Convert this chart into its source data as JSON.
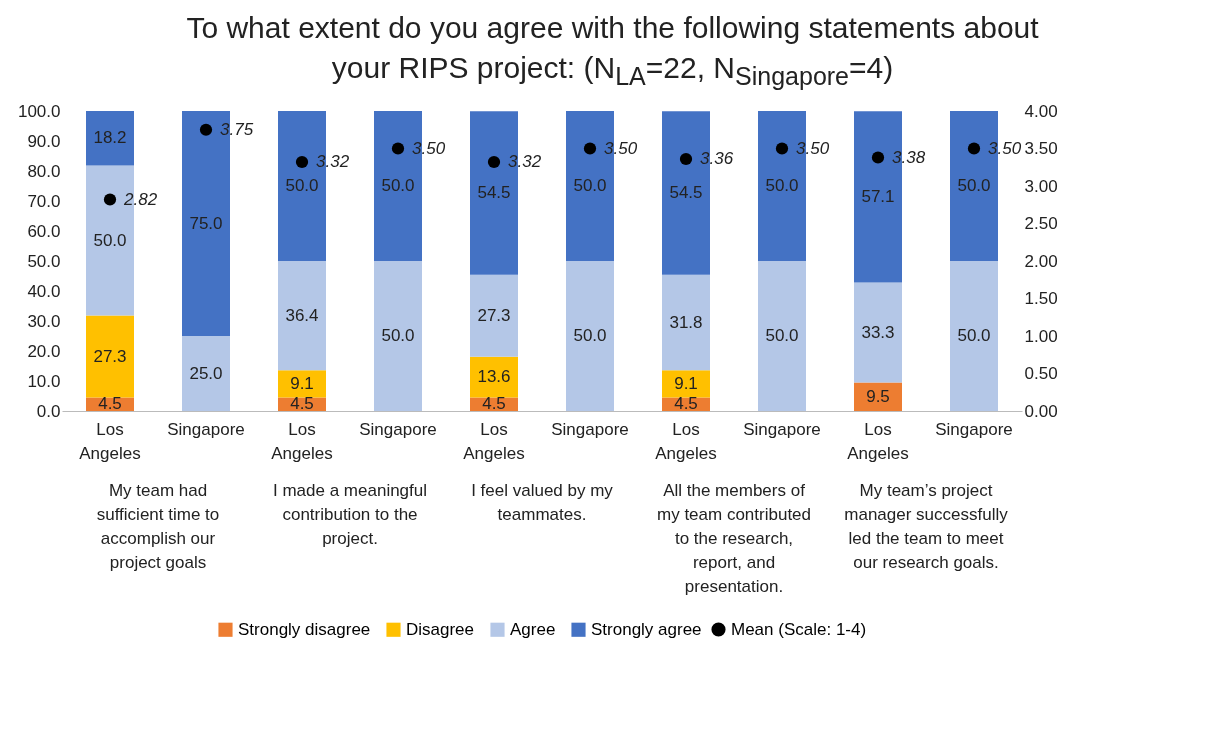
{
  "chart_data": {
    "type": "bar",
    "stacked": true,
    "legend": "bottom",
    "title": "To what extent do you agree with the following statements about your RIPS project: (N$_{LA}$=22, N$_{Singapore}$=4)",
    "categories": [
      "Los Angeles",
      "Singapore",
      "Los Angeles",
      "Singapore",
      "Los Angeles",
      "Singapore",
      "Los Angeles",
      "Singapore",
      "Los Angeles",
      "Singapore"
    ],
    "annotations": [
      "My team had sufficient time to accomplish our project goals",
      "I made a meaningful contribution to the project.",
      "I feel valued by my teammates.",
      "All the members of my team contributed to the research, report, and presentation.",
      "My team’s project manager successfully led the team to meet our research goals."
    ],
    "ylim": [
      0,
      100
    ],
    "yticks": [
      {
        "value": 0,
        "label": "0.0"
      },
      {
        "value": 10,
        "label": "10.0"
      },
      {
        "value": 20,
        "label": "20.0"
      },
      {
        "value": 30,
        "label": "30.0"
      },
      {
        "value": 40,
        "label": "40.0"
      },
      {
        "value": 50,
        "label": "50.0"
      },
      {
        "value": 60,
        "label": "60.0"
      },
      {
        "value": 70,
        "label": "70.0"
      },
      {
        "value": 80,
        "label": "80.0"
      },
      {
        "value": 90,
        "label": "90.0"
      },
      {
        "value": 100,
        "label": "100.0"
      }
    ],
    "y2lim": [
      0,
      4
    ],
    "y2ticks": [
      {
        "value": 0,
        "label": "0.00"
      },
      {
        "value": 0.5,
        "label": "0.50"
      },
      {
        "value": 1,
        "label": "1.00"
      },
      {
        "value": 1.5,
        "label": "1.50"
      },
      {
        "value": 2,
        "label": "2.00"
      },
      {
        "value": 2.5,
        "label": "2.50"
      },
      {
        "value": 3,
        "label": "3.00"
      },
      {
        "value": 3.5,
        "label": "3.50"
      },
      {
        "value": 4,
        "label": "4.00"
      }
    ],
    "series": [
      {
        "name": "Strongly disagree",
        "color": "#ed7d31",
        "values": [
          4.5,
          0,
          4.5,
          0,
          4.5,
          0,
          4.5,
          0,
          9.5,
          0
        ],
        "value_labels": [
          "4.5",
          null,
          "4.5",
          null,
          "4.5",
          null,
          "4.5",
          null,
          "9.5",
          null
        ]
      },
      {
        "name": "Disagree",
        "color": "#ffc000",
        "values": [
          27.3,
          0,
          9.1,
          0,
          13.6,
          0,
          9.1,
          0,
          0,
          0
        ],
        "value_labels": [
          "27.3",
          null,
          "9.1",
          null,
          "13.6",
          null,
          "9.1",
          null,
          null,
          null
        ]
      },
      {
        "name": "Agree",
        "color": "#b4c7e7",
        "values": [
          50.0,
          25.0,
          36.4,
          50.0,
          27.3,
          50.0,
          31.8,
          50.0,
          33.3,
          50.0
        ],
        "value_labels": [
          "50.0",
          "25.0",
          "36.4",
          "50.0",
          "27.3",
          "50.0",
          "31.8",
          "50.0",
          "33.3",
          "50.0"
        ]
      },
      {
        "name": "Strongly agree",
        "color": "#4472c4",
        "values": [
          18.2,
          75.0,
          50.0,
          50.0,
          54.5,
          50.0,
          54.5,
          50.0,
          57.1,
          50.0
        ],
        "value_labels": [
          "18.2",
          "75.0",
          "50.0",
          "50.0",
          "54.5",
          "50.0",
          "54.5",
          "50.0",
          "57.1",
          "50.0"
        ]
      },
      {
        "name": "Mean (Scale: 1-4)",
        "type": "scatter",
        "axis": "y2",
        "marker": "circle",
        "color": "#000000",
        "values": [
          2.82,
          3.75,
          3.32,
          3.5,
          3.32,
          3.5,
          3.36,
          3.5,
          3.38,
          3.5
        ],
        "value_labels": [
          "2.82",
          "3.75",
          "3.32",
          "3.50",
          "3.32",
          "3.50",
          "3.36",
          "3.50",
          "3.38",
          "3.50"
        ]
      }
    ]
  }
}
